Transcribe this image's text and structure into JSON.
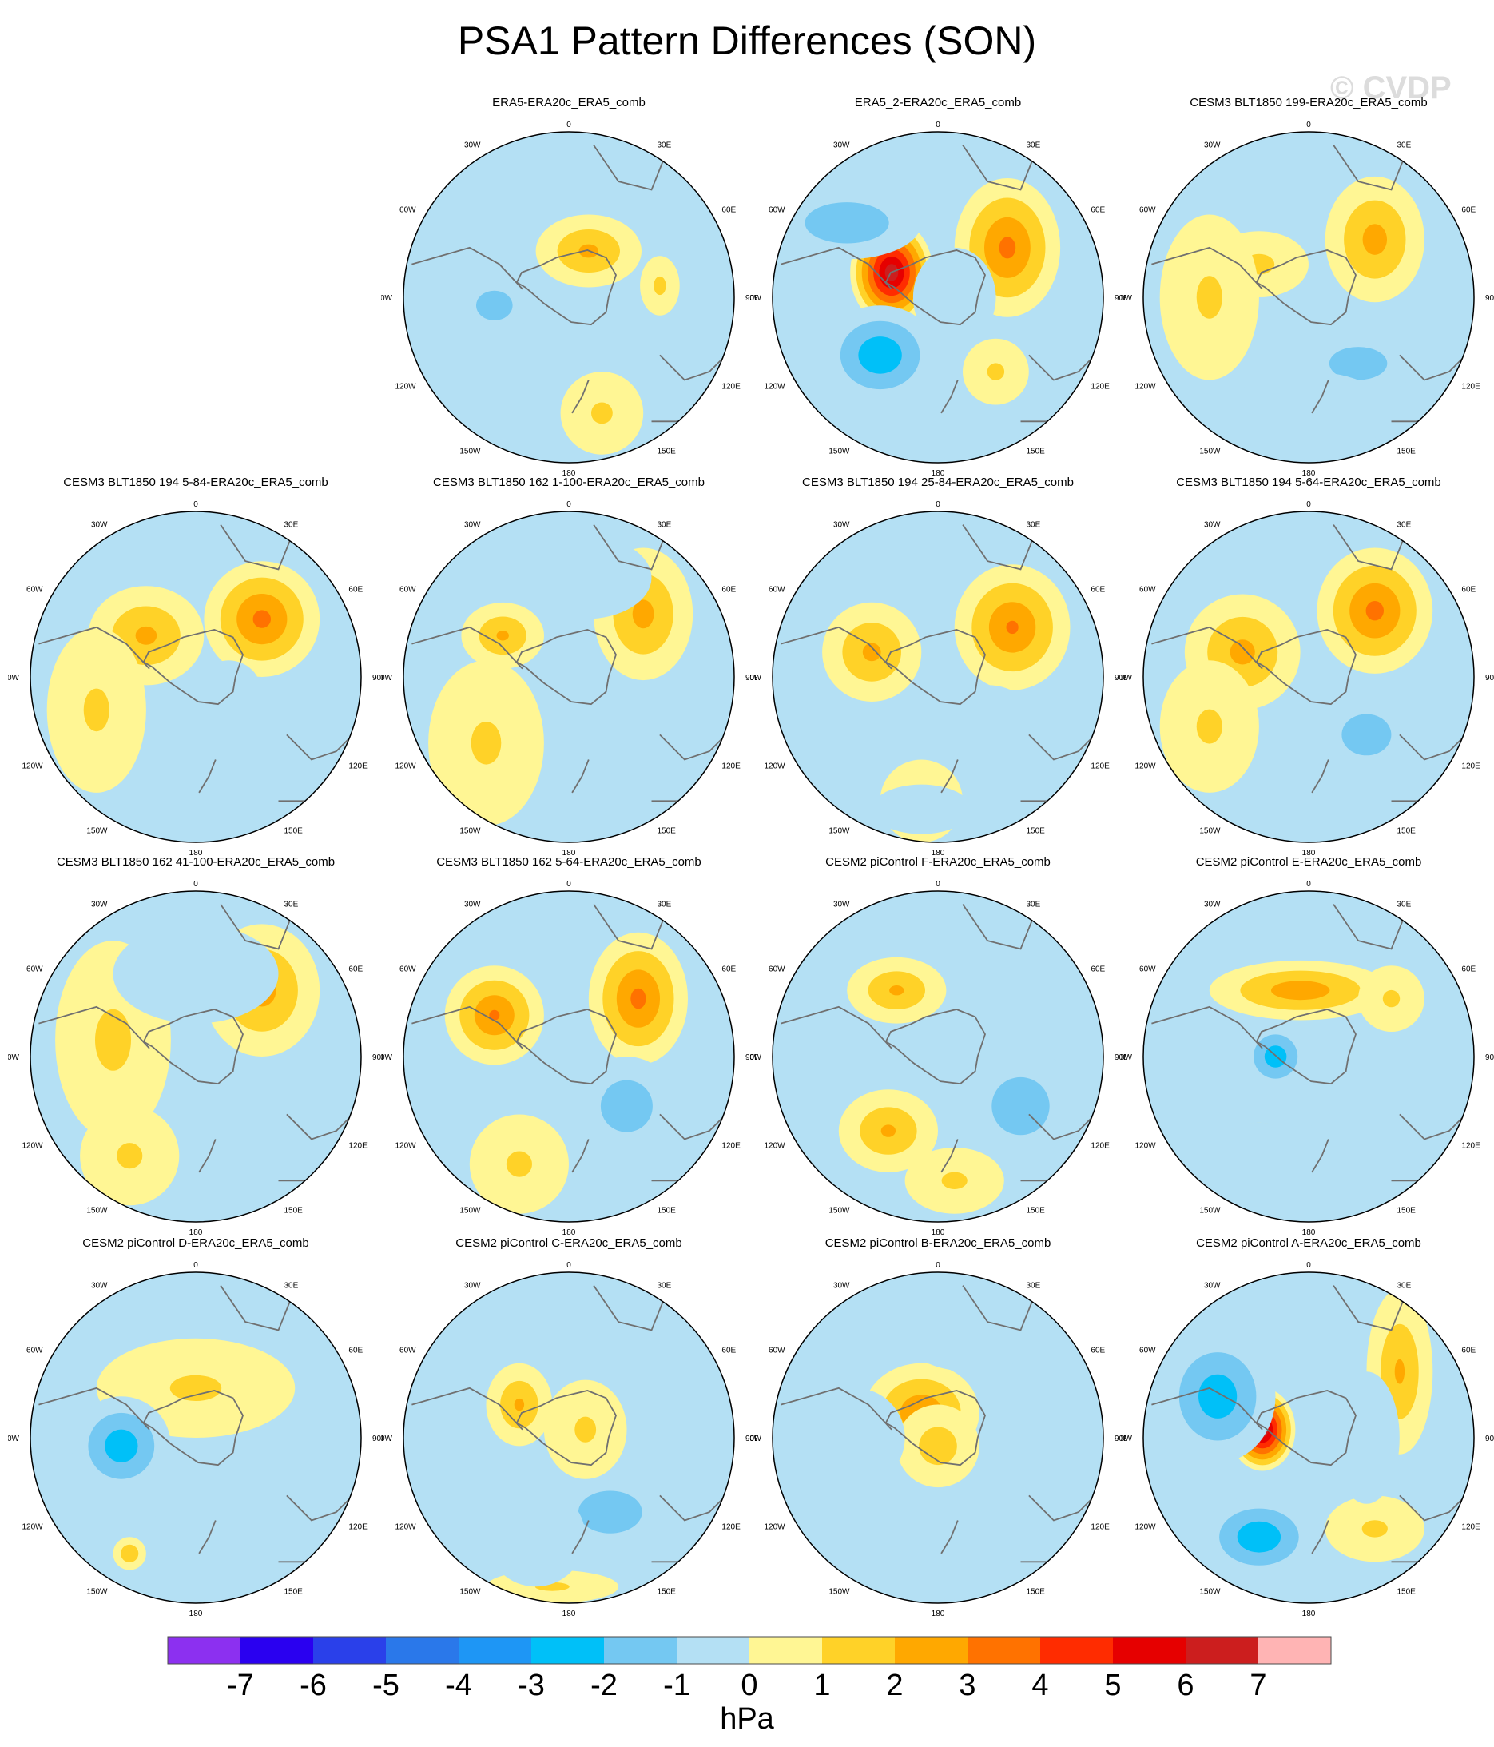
{
  "figure": {
    "title": "PSA1 Pattern Differences (SON)",
    "watermark": "© CVDP",
    "units": "hPa"
  },
  "colors": {
    "c_m8": "#8c30f0",
    "c_m7": "#2a00f0",
    "c_m6": "#2a40ea",
    "c_m5": "#2a78ea",
    "c_m4": "#1e96f5",
    "c_m3": "#00c0f8",
    "c_m2": "#74c8f2",
    "c_m1": "#b4e0f4",
    "c_0": "#fff694",
    "c_1": "#ffd228",
    "c_2": "#ffa800",
    "c_3": "#ff7200",
    "c_4": "#ff2c00",
    "c_5": "#e60000",
    "c_6": "#cc1e1e",
    "c_7": "#ffb4b4",
    "coast": "#707070",
    "map_border": "#000000",
    "frame": "#4a4a4a"
  },
  "colorbar": {
    "labels": [
      "-7",
      "-6",
      "-5",
      "-4",
      "-3",
      "-2",
      "-1",
      "0",
      "1",
      "2",
      "3",
      "4",
      "5",
      "6",
      "7"
    ]
  },
  "grid_labels": {
    "top": "0",
    "bottom": "180",
    "left": [
      "30W",
      "60W",
      "90W",
      "120W",
      "150W"
    ],
    "right": [
      "30E",
      "60E",
      "90E",
      "120E",
      "150E"
    ]
  },
  "panels": [
    {
      "title": "ERA5-ERA20c_ERA5_comb",
      "lows": [
        [
          -0.45,
          -0.05,
          0.22,
          0.18,
          2.0
        ],
        [
          0.15,
          -0.28,
          0.17,
          0.09,
          1.3
        ]
      ],
      "highs": [
        [
          0.12,
          0.28,
          0.32,
          0.22,
          2.1
        ],
        [
          0.55,
          0.07,
          0.12,
          0.18,
          1.1
        ],
        [
          0.2,
          -0.7,
          0.25,
          0.25,
          1.0
        ]
      ]
    },
    {
      "title": "ERA5_2-ERA20c_ERA5_comb",
      "lows": [
        [
          -0.35,
          -0.35,
          0.35,
          0.3,
          3.2
        ],
        [
          -0.55,
          0.45,
          0.45,
          0.22,
          2.3
        ],
        [
          0.1,
          0.0,
          0.25,
          0.3,
          1.5
        ]
      ],
      "highs": [
        [
          -0.28,
          0.15,
          0.25,
          0.32,
          6.8
        ],
        [
          0.42,
          0.3,
          0.32,
          0.42,
          3.2
        ],
        [
          0.35,
          -0.45,
          0.2,
          0.2,
          1.0
        ]
      ]
    },
    {
      "title": "CESM3 BLT1850 199-ERA20c_ERA5_comb",
      "lows": [
        [
          0.3,
          -0.4,
          0.35,
          0.2,
          2.0
        ],
        [
          0.0,
          -0.7,
          0.5,
          0.25,
          1.0
        ]
      ],
      "highs": [
        [
          0.4,
          0.35,
          0.3,
          0.38,
          2.3
        ],
        [
          -0.3,
          0.2,
          0.3,
          0.2,
          1.1
        ],
        [
          -0.6,
          0.0,
          0.3,
          0.5,
          1.0
        ]
      ]
    },
    {
      "title": "CESM3 BLT1850 194 5-84-ERA20c_ERA5_comb",
      "lows": [
        [
          0.35,
          -0.45,
          0.3,
          0.22,
          1.9
        ],
        [
          0.2,
          -0.1,
          0.2,
          0.2,
          1.0
        ]
      ],
      "highs": [
        [
          0.4,
          0.35,
          0.35,
          0.35,
          3.2
        ],
        [
          -0.3,
          0.25,
          0.35,
          0.3,
          2.1
        ],
        [
          -0.6,
          -0.2,
          0.3,
          0.5,
          1.0
        ]
      ]
    },
    {
      "title": "CESM3 BLT1850 162 1-100-ERA20c_ERA5_comb",
      "lows": [
        [
          0.35,
          -0.42,
          0.3,
          0.2,
          1.9
        ],
        [
          0.1,
          0.6,
          0.4,
          0.25,
          1.0
        ]
      ],
      "highs": [
        [
          0.45,
          0.38,
          0.3,
          0.4,
          2.2
        ],
        [
          -0.4,
          0.25,
          0.25,
          0.2,
          2.0
        ],
        [
          -0.5,
          -0.4,
          0.35,
          0.5,
          1.0
        ]
      ]
    },
    {
      "title": "CESM3 BLT1850 194 25-84-ERA20c_ERA5_comb",
      "lows": [
        [
          0.3,
          -0.3,
          0.3,
          0.25,
          1.9
        ],
        [
          -0.1,
          -0.8,
          0.3,
          0.15,
          1.0
        ]
      ],
      "highs": [
        [
          0.45,
          0.3,
          0.35,
          0.38,
          3.0
        ],
        [
          -0.4,
          0.15,
          0.3,
          0.3,
          2.1
        ],
        [
          -0.1,
          -0.75,
          0.25,
          0.25,
          1.0
        ]
      ]
    },
    {
      "title": "CESM3 BLT1850 194 5-64-ERA20c_ERA5_comb",
      "lows": [
        [
          0.35,
          -0.35,
          0.3,
          0.25,
          2.0
        ],
        [
          -0.05,
          -0.8,
          0.35,
          0.15,
          1.0
        ]
      ],
      "highs": [
        [
          0.4,
          0.4,
          0.35,
          0.38,
          3.2
        ],
        [
          -0.4,
          0.15,
          0.35,
          0.35,
          2.2
        ],
        [
          -0.6,
          -0.3,
          0.3,
          0.4,
          1.0
        ]
      ]
    },
    {
      "title": "CESM3 BLT1850 162 41-100-ERA20c_ERA5_comb",
      "lows": [
        [
          0.3,
          -0.35,
          0.35,
          0.2,
          1.8
        ],
        [
          0.0,
          0.5,
          0.5,
          0.3,
          1.0
        ]
      ],
      "highs": [
        [
          0.4,
          0.4,
          0.35,
          0.4,
          2.3
        ],
        [
          -0.5,
          0.1,
          0.35,
          0.6,
          1.1
        ],
        [
          -0.4,
          -0.6,
          0.3,
          0.3,
          1.0
        ]
      ]
    },
    {
      "title": "CESM3 BLT1850 162 5-64-ERA20c_ERA5_comb",
      "lows": [
        [
          0.35,
          -0.3,
          0.3,
          0.3,
          2.1
        ],
        [
          0.0,
          -0.1,
          0.25,
          0.25,
          1.0
        ]
      ],
      "highs": [
        [
          0.42,
          0.35,
          0.3,
          0.4,
          3.2
        ],
        [
          -0.45,
          0.25,
          0.3,
          0.3,
          3.0
        ],
        [
          -0.3,
          -0.65,
          0.3,
          0.3,
          1.0
        ]
      ]
    },
    {
      "title": "CESM2 piControl F-ERA20c_ERA5_comb",
      "lows": [
        [
          0.5,
          -0.3,
          0.35,
          0.35,
          2.0
        ],
        [
          -0.1,
          0.0,
          0.3,
          0.2,
          1.0
        ]
      ],
      "highs": [
        [
          -0.3,
          -0.45,
          0.3,
          0.25,
          2.0
        ],
        [
          -0.25,
          0.4,
          0.3,
          0.2,
          2.0
        ],
        [
          0.1,
          -0.75,
          0.3,
          0.2,
          1.0
        ]
      ]
    },
    {
      "title": "CESM2 piControl E-ERA20c_ERA5_comb",
      "lows": [
        [
          -0.2,
          0.0,
          0.2,
          0.2,
          3.0
        ],
        [
          0.3,
          -0.3,
          0.35,
          0.2,
          1.9
        ],
        [
          -0.3,
          -0.7,
          0.3,
          0.3,
          1.0
        ]
      ],
      "highs": [
        [
          -0.05,
          0.4,
          0.55,
          0.18,
          2.6
        ],
        [
          -0.3,
          -0.55,
          0.2,
          0.15,
          1.8
        ],
        [
          0.5,
          0.35,
          0.2,
          0.2,
          1.0
        ]
      ]
    },
    {
      "title": "CESM2 piControl D-ERA20c_ERA5_comb",
      "lows": [
        [
          -0.45,
          -0.05,
          0.3,
          0.3,
          3.0
        ],
        [
          0.0,
          -0.3,
          0.3,
          0.3,
          1.0
        ]
      ],
      "highs": [
        [
          -0.4,
          -0.7,
          0.1,
          0.1,
          1.8
        ],
        [
          0.0,
          0.3,
          0.6,
          0.3,
          1.0
        ]
      ]
    },
    {
      "title": "CESM2 piControl C-ERA20c_ERA5_comb",
      "lows": [
        [
          0.25,
          -0.45,
          0.3,
          0.2,
          2.8
        ],
        [
          -0.2,
          -0.6,
          0.3,
          0.3,
          1.0
        ]
      ],
      "highs": [
        [
          -0.3,
          0.2,
          0.2,
          0.25,
          2.0
        ],
        [
          0.1,
          0.05,
          0.25,
          0.3,
          1.0
        ],
        [
          -0.1,
          -0.9,
          0.4,
          0.1,
          1.0
        ]
      ]
    },
    {
      "title": "CESM2 piControl B-ERA20c_ERA5_comb",
      "lows": [
        [
          0.3,
          -0.55,
          0.35,
          0.2,
          1.9
        ],
        [
          0.2,
          0.55,
          0.35,
          0.15,
          1.9
        ],
        [
          -0.5,
          0.0,
          0.3,
          0.3,
          1.0
        ]
      ],
      "highs": [
        [
          -0.1,
          0.15,
          0.35,
          0.3,
          2.8
        ],
        [
          0.0,
          -0.05,
          0.25,
          0.25,
          1.5
        ]
      ]
    },
    {
      "title": "CESM2 piControl A-ERA20c_ERA5_comb",
      "lows": [
        [
          -0.3,
          -0.6,
          0.35,
          0.25,
          3.2
        ],
        [
          -0.55,
          0.25,
          0.35,
          0.4,
          3.0
        ],
        [
          0.35,
          0.0,
          0.2,
          0.4,
          1.0
        ]
      ],
      "highs": [
        [
          -0.28,
          0.05,
          0.2,
          0.25,
          7.0
        ],
        [
          0.55,
          0.4,
          0.2,
          0.5,
          2.0
        ],
        [
          0.4,
          -0.55,
          0.3,
          0.2,
          1.0
        ]
      ]
    }
  ]
}
